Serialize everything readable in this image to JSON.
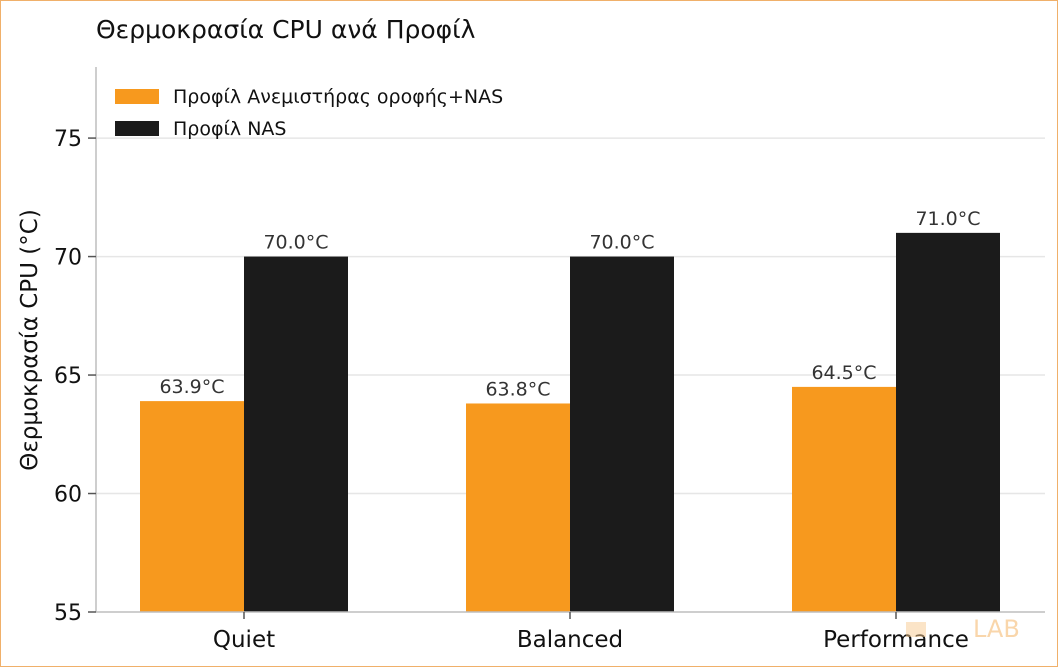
{
  "chart_data": {
    "type": "bar",
    "title": "Θερμοκρασία CPU ανά Προφίλ",
    "xlabel": "",
    "ylabel": "Θερμοκρασία CPU (°C)",
    "categories": [
      "Quiet",
      "Balanced",
      "Performance"
    ],
    "series": [
      {
        "name": "Προφίλ Ανεμιστήρας οροφής+NAS",
        "values": [
          63.9,
          63.8,
          64.5
        ],
        "labels": [
          "63.9°C",
          "63.8°C",
          "64.5°C"
        ],
        "color": "#f7991e"
      },
      {
        "name": "Προφίλ NAS",
        "values": [
          70.0,
          70.0,
          71.0
        ],
        "labels": [
          "70.0°C",
          "70.0°C",
          "71.0°C"
        ],
        "color": "#1b1b1b"
      }
    ],
    "ylim": [
      55,
      78
    ],
    "yticks": [
      55,
      60,
      65,
      70,
      75
    ],
    "grid": true,
    "legend_position": "top-left"
  },
  "watermark": {
    "text": "LAB",
    "color": "#f7c98f"
  }
}
